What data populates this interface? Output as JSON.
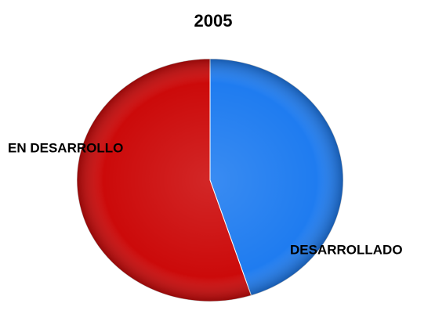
{
  "chart_data": {
    "type": "pie",
    "title": "2005",
    "categories": [
      "DESARROLLADO",
      "EN DESARROLLO"
    ],
    "values": [
      45,
      55
    ],
    "colors": [
      "#1f7cf0",
      "#cc0a0a"
    ]
  }
}
